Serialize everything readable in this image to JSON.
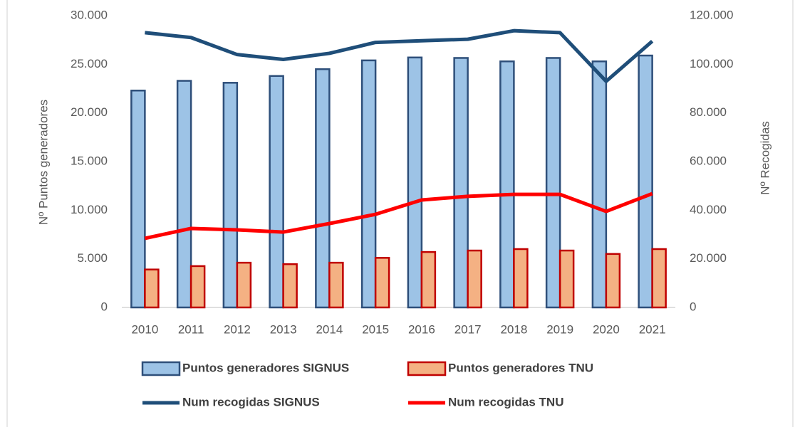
{
  "chart_data": {
    "type": "combo",
    "categories": [
      "2010",
      "2011",
      "2012",
      "2013",
      "2014",
      "2015",
      "2016",
      "2017",
      "2018",
      "2019",
      "2020",
      "2021"
    ],
    "ylabel": "Nº Puntos generadores",
    "y2label": "Nº Recogidas",
    "ylim": [
      0,
      30000
    ],
    "yticks": [
      0,
      {
        "value": 5000,
        "label": "5.000"
      },
      {
        "value": 10000,
        "label": "10.000"
      },
      {
        "value": 15000,
        "label": "15.000"
      },
      {
        "value": 20000,
        "label": "20.000"
      },
      {
        "value": 25000,
        "label": "25.000"
      },
      {
        "value": 30000,
        "label": "30.000"
      }
    ],
    "y2lim": [
      0,
      120000
    ],
    "y2ticks": [
      0,
      {
        "value": 20000,
        "label": "20.000"
      },
      {
        "value": 40000,
        "label": "40.000"
      },
      {
        "value": 60000,
        "label": "60.000"
      },
      {
        "value": 80000,
        "label": "80.000"
      },
      {
        "value": 100000,
        "label": "100.000"
      },
      {
        "value": 120000,
        "label": "120.000"
      }
    ],
    "series": [
      {
        "name": "Puntos generadores SIGNUS",
        "type": "bar",
        "color": "#9dc3e6",
        "edge": "#2e4f7a",
        "values": [
          22300,
          23300,
          23100,
          23800,
          24500,
          25400,
          25700,
          25650,
          25300,
          25650,
          25300,
          25900
        ]
      },
      {
        "name": "Puntos generadores TNU",
        "type": "bar",
        "color": "#f4b183",
        "edge": "#c00000",
        "values": [
          3900,
          4250,
          4600,
          4450,
          4600,
          5100,
          5700,
          5850,
          6000,
          5850,
          5500,
          6000
        ]
      },
      {
        "name": "Num recogidas SIGNUS",
        "type": "line",
        "axis": "y2",
        "color": "#1f4e79",
        "values": [
          113000,
          111000,
          104000,
          102000,
          104500,
          109000,
          109700,
          110300,
          113800,
          113000,
          93000,
          109500
        ]
      },
      {
        "name": "Num recogidas TNU",
        "type": "line",
        "axis": "y2",
        "color": "#ff0000",
        "values": [
          28400,
          32500,
          31900,
          31000,
          34500,
          38300,
          44200,
          45700,
          46500,
          46500,
          39500,
          46800
        ]
      }
    ]
  }
}
